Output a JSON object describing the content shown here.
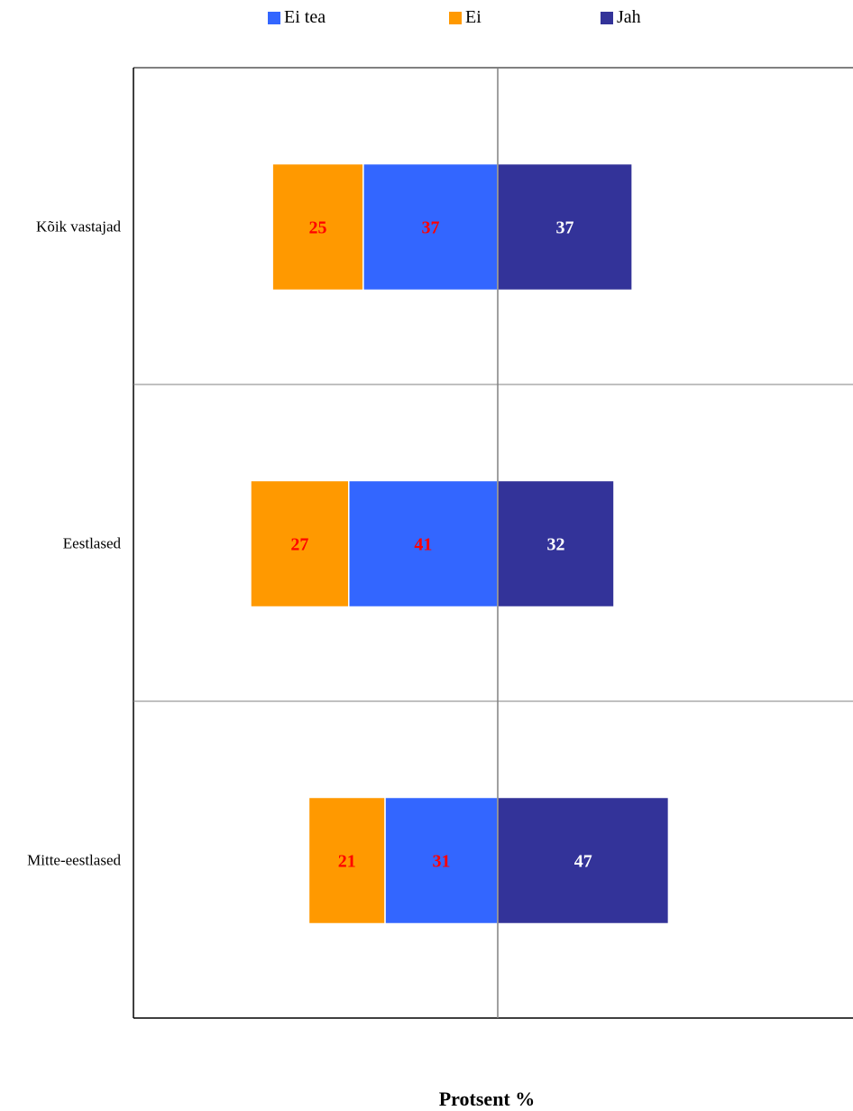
{
  "chart_data": {
    "type": "bar",
    "orientation": "horizontal",
    "stacking": "diverging",
    "categories": [
      "Kõik vastajad",
      "Eestlased",
      "Mitte-eestlased"
    ],
    "series": [
      {
        "name": "Ei tea",
        "color": "#3366FF",
        "values": [
          37,
          41,
          31
        ],
        "label_color": "#FF0000"
      },
      {
        "name": "Ei",
        "color": "#FF9900",
        "values": [
          25,
          27,
          21
        ],
        "label_color": "#FF0000"
      },
      {
        "name": "Jah",
        "color": "#333399",
        "values": [
          37,
          32,
          47
        ],
        "label_color": "#FFFFFF"
      }
    ],
    "xlabel": "Protsent %",
    "ylabel": "",
    "legend_position": "top",
    "grid": true
  }
}
